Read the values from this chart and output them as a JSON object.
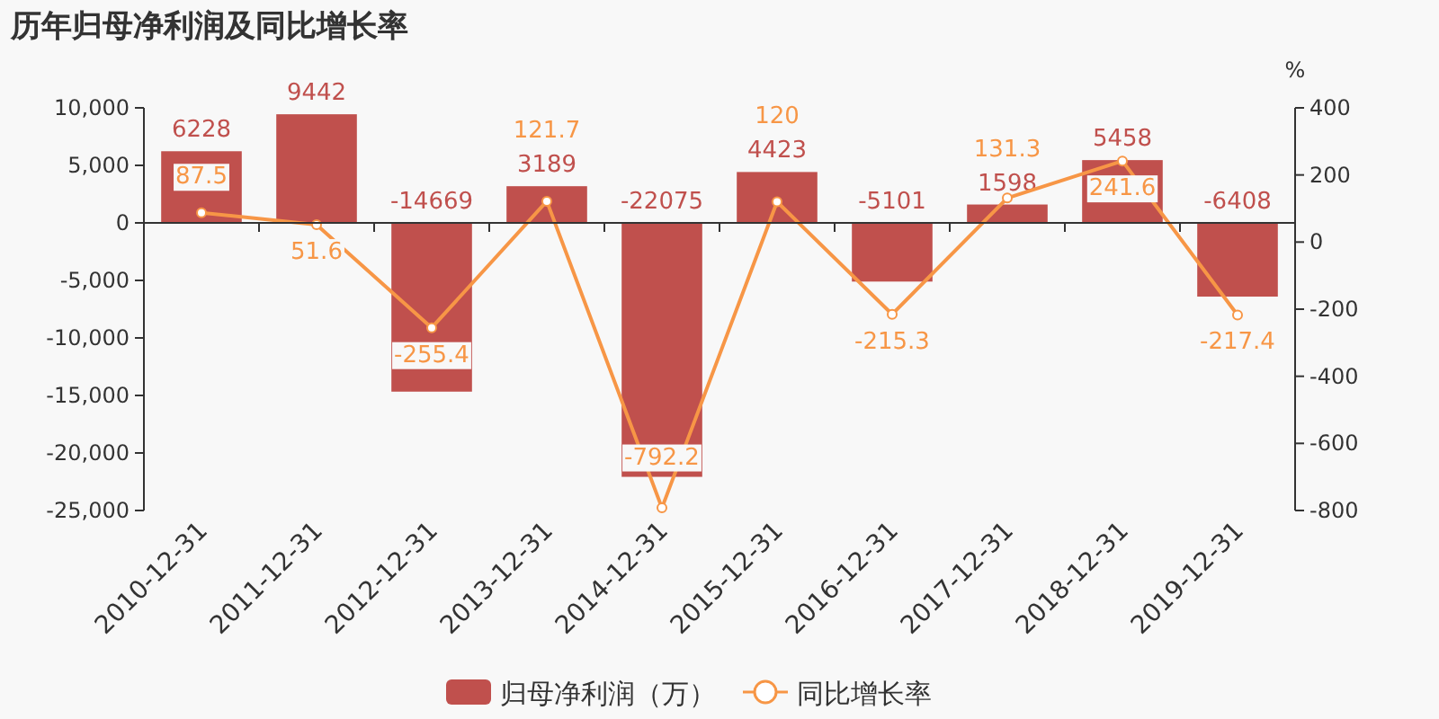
{
  "chart_data": {
    "type": "bar",
    "title": "历年归母净利润及同比增长率",
    "y2label": "%",
    "categories": [
      "2010-12-31",
      "2011-12-31",
      "2012-12-31",
      "2013-12-31",
      "2014-12-31",
      "2015-12-31",
      "2016-12-31",
      "2017-12-31",
      "2018-12-31",
      "2019-12-31"
    ],
    "series": [
      {
        "name": "归母净利润（万）",
        "color": "#c0504d",
        "values": [
          6228,
          9442,
          -14669,
          3189,
          -22075,
          4423,
          -5101,
          1598,
          5458,
          -6408
        ]
      },
      {
        "name": "同比增长率",
        "type": "line",
        "axis": "y2",
        "color": "#f79646",
        "marker": "circle",
        "values": [
          87.5,
          51.6,
          -255.4,
          121.7,
          -792.2,
          120,
          -215.3,
          131.3,
          241.6,
          -217.4
        ]
      }
    ],
    "ylim": [
      -25000,
      10000
    ],
    "yticks": [
      {
        "value": -25000,
        "label": "-25,000"
      },
      {
        "value": -20000,
        "label": "-20,000"
      },
      {
        "value": -15000,
        "label": "-15,000"
      },
      {
        "value": -10000,
        "label": "-10,000"
      },
      {
        "value": -5000,
        "label": "-5,000"
      },
      0,
      {
        "value": 5000,
        "label": "5,000"
      },
      {
        "value": 10000,
        "label": "10,000"
      }
    ],
    "y2lim": [
      -800,
      400
    ],
    "y2ticks": [
      -800,
      -600,
      -400,
      -200,
      0,
      200,
      400
    ],
    "data_labels": true,
    "legend": "bottom"
  }
}
